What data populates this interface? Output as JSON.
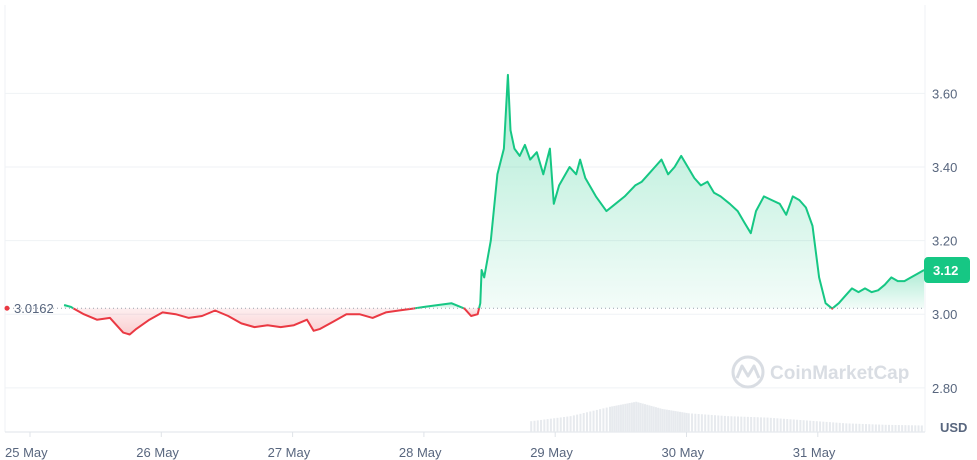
{
  "watermark": "CoinMarketCap",
  "chart_data": {
    "type": "area",
    "x_labels": [
      "25 May",
      "26 May",
      "27 May",
      "28 May",
      "29 May",
      "30 May",
      "31 May"
    ],
    "y_ticks": [
      "2.80",
      "3.00",
      "3.20",
      "3.40",
      "3.60"
    ],
    "y_tick_values": [
      2.8,
      3.0,
      3.2,
      3.4,
      3.6
    ],
    "unit": "USD",
    "ylim": [
      2.68,
      3.84
    ],
    "xlim_days": [
      0,
      7.0
    ],
    "reference_line": {
      "value": 3.0162,
      "label": "3.0162"
    },
    "current_price": {
      "value": 3.12,
      "label": "3.12"
    },
    "colors": {
      "up": "#16c784",
      "down": "#ea3943",
      "grid": "#eff2f5",
      "volume": "#e7eaee"
    },
    "grid": true,
    "series": [
      {
        "values": [
          [
            0.45,
            3.025
          ],
          [
            0.5,
            3.02
          ],
          [
            0.6,
            3.0
          ],
          [
            0.7,
            2.985
          ],
          [
            0.8,
            2.99
          ],
          [
            0.9,
            2.95
          ],
          [
            0.95,
            2.945
          ],
          [
            1.0,
            2.96
          ],
          [
            1.1,
            2.985
          ],
          [
            1.2,
            3.005
          ],
          [
            1.3,
            3.0
          ],
          [
            1.4,
            2.99
          ],
          [
            1.5,
            2.995
          ],
          [
            1.6,
            3.01
          ],
          [
            1.7,
            2.995
          ],
          [
            1.8,
            2.975
          ],
          [
            1.9,
            2.965
          ],
          [
            2.0,
            2.97
          ],
          [
            2.1,
            2.965
          ],
          [
            2.2,
            2.97
          ],
          [
            2.3,
            2.985
          ],
          [
            2.35,
            2.955
          ],
          [
            2.4,
            2.96
          ],
          [
            2.5,
            2.98
          ],
          [
            2.6,
            3.0
          ],
          [
            2.7,
            3.0
          ],
          [
            2.8,
            2.99
          ],
          [
            2.9,
            3.005
          ],
          [
            3.0,
            3.01
          ],
          [
            3.1,
            3.015
          ],
          [
            3.2,
            3.02
          ],
          [
            3.3,
            3.025
          ],
          [
            3.4,
            3.03
          ],
          [
            3.5,
            3.015
          ],
          [
            3.55,
            2.995
          ],
          [
            3.6,
            3.0
          ],
          [
            3.62,
            3.03
          ],
          [
            3.63,
            3.12
          ],
          [
            3.65,
            3.1
          ],
          [
            3.7,
            3.2
          ],
          [
            3.75,
            3.38
          ],
          [
            3.8,
            3.45
          ],
          [
            3.83,
            3.65
          ],
          [
            3.85,
            3.5
          ],
          [
            3.88,
            3.45
          ],
          [
            3.92,
            3.43
          ],
          [
            3.96,
            3.46
          ],
          [
            4.0,
            3.42
          ],
          [
            4.05,
            3.44
          ],
          [
            4.1,
            3.38
          ],
          [
            4.15,
            3.45
          ],
          [
            4.18,
            3.3
          ],
          [
            4.22,
            3.35
          ],
          [
            4.3,
            3.4
          ],
          [
            4.35,
            3.38
          ],
          [
            4.38,
            3.42
          ],
          [
            4.42,
            3.37
          ],
          [
            4.5,
            3.32
          ],
          [
            4.58,
            3.28
          ],
          [
            4.65,
            3.3
          ],
          [
            4.72,
            3.32
          ],
          [
            4.8,
            3.35
          ],
          [
            4.85,
            3.36
          ],
          [
            4.9,
            3.38
          ],
          [
            4.95,
            3.4
          ],
          [
            5.0,
            3.42
          ],
          [
            5.05,
            3.38
          ],
          [
            5.1,
            3.4
          ],
          [
            5.15,
            3.43
          ],
          [
            5.2,
            3.4
          ],
          [
            5.25,
            3.37
          ],
          [
            5.3,
            3.35
          ],
          [
            5.35,
            3.36
          ],
          [
            5.4,
            3.33
          ],
          [
            5.45,
            3.32
          ],
          [
            5.52,
            3.3
          ],
          [
            5.58,
            3.28
          ],
          [
            5.63,
            3.25
          ],
          [
            5.68,
            3.22
          ],
          [
            5.72,
            3.28
          ],
          [
            5.78,
            3.32
          ],
          [
            5.84,
            3.31
          ],
          [
            5.9,
            3.3
          ],
          [
            5.95,
            3.27
          ],
          [
            6.0,
            3.32
          ],
          [
            6.05,
            3.31
          ],
          [
            6.1,
            3.29
          ],
          [
            6.15,
            3.24
          ],
          [
            6.2,
            3.1
          ],
          [
            6.25,
            3.03
          ],
          [
            6.3,
            3.015
          ],
          [
            6.35,
            3.03
          ],
          [
            6.4,
            3.05
          ],
          [
            6.45,
            3.07
          ],
          [
            6.5,
            3.06
          ],
          [
            6.55,
            3.07
          ],
          [
            6.6,
            3.06
          ],
          [
            6.65,
            3.065
          ],
          [
            6.7,
            3.08
          ],
          [
            6.75,
            3.1
          ],
          [
            6.8,
            3.09
          ],
          [
            6.85,
            3.09
          ],
          [
            6.9,
            3.1
          ],
          [
            6.95,
            3.11
          ],
          [
            7.0,
            3.12
          ]
        ]
      }
    ],
    "volume_bars": [
      [
        4.0,
        0.15
      ],
      [
        4.3,
        0.22
      ],
      [
        4.6,
        0.35
      ],
      [
        4.8,
        0.42
      ],
      [
        5.0,
        0.32
      ],
      [
        5.2,
        0.26
      ],
      [
        5.5,
        0.22
      ],
      [
        5.8,
        0.2
      ],
      [
        6.1,
        0.16
      ],
      [
        6.4,
        0.12
      ],
      [
        6.7,
        0.1
      ],
      [
        7.0,
        0.09
      ]
    ]
  }
}
